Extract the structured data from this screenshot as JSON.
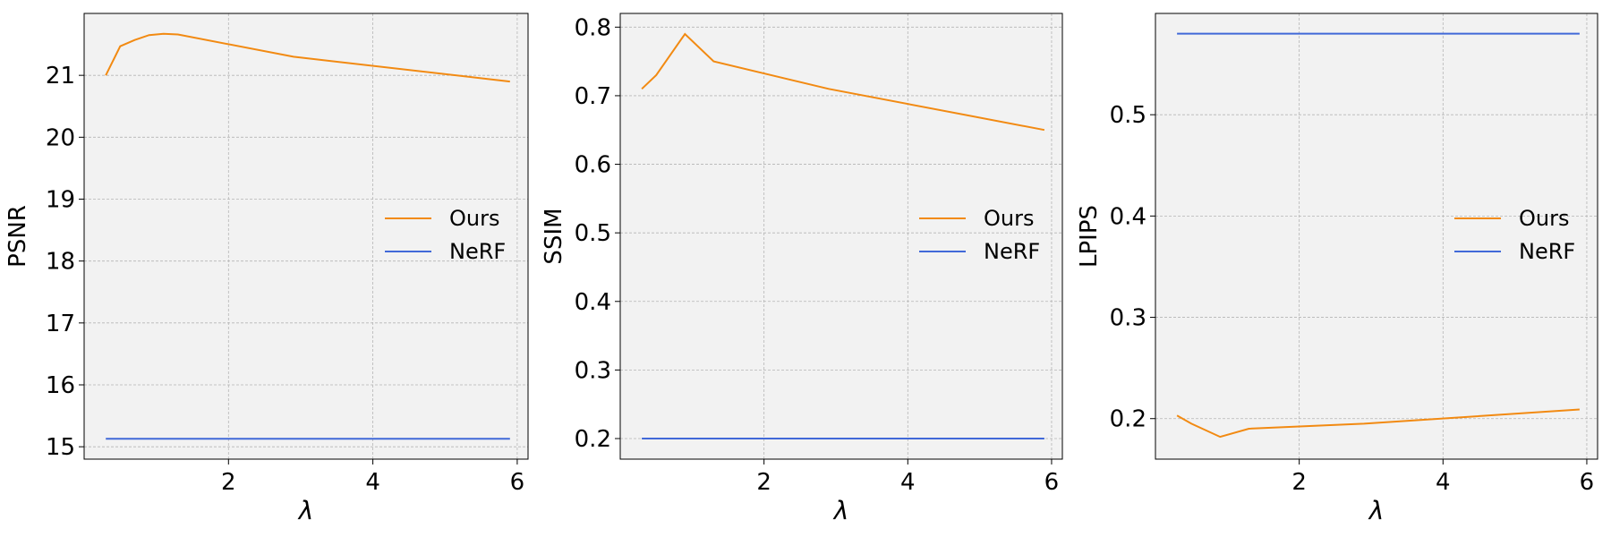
{
  "colors": {
    "ours": "#f28a12",
    "nerf": "#4169d8",
    "plot_bg": "#f2f2f2",
    "grid": "#b5b5b5"
  },
  "chart_data": [
    {
      "type": "line",
      "title": "",
      "xlabel": "λ",
      "ylabel": "PSNR",
      "xlim": [
        0,
        6.15
      ],
      "ylim": [
        14.8,
        22.0
      ],
      "xticks": [
        2,
        4,
        6
      ],
      "yticks": [
        15,
        16,
        17,
        18,
        19,
        20,
        21
      ],
      "grid": true,
      "legend_position": "center-right",
      "series": [
        {
          "name": "Ours",
          "x": [
            0.3,
            0.5,
            0.7,
            0.9,
            1.1,
            1.3,
            2.9,
            5.9
          ],
          "values": [
            21.0,
            21.47,
            21.57,
            21.65,
            21.67,
            21.66,
            21.3,
            20.9
          ]
        },
        {
          "name": "NeRF",
          "x": [
            0.3,
            5.9
          ],
          "values": [
            15.13,
            15.13
          ]
        }
      ]
    },
    {
      "type": "line",
      "title": "",
      "xlabel": "λ",
      "ylabel": "SSIM",
      "xlim": [
        0,
        6.15
      ],
      "ylim": [
        0.17,
        0.82
      ],
      "xticks": [
        2,
        4,
        6
      ],
      "yticks": [
        0.2,
        0.3,
        0.4,
        0.5,
        0.6,
        0.7,
        0.8
      ],
      "grid": true,
      "legend_position": "center-right",
      "series": [
        {
          "name": "Ours",
          "x": [
            0.3,
            0.5,
            0.9,
            1.3,
            2.9,
            5.9
          ],
          "values": [
            0.71,
            0.73,
            0.79,
            0.75,
            0.71,
            0.65
          ]
        },
        {
          "name": "NeRF",
          "x": [
            0.3,
            5.9
          ],
          "values": [
            0.2,
            0.2
          ]
        }
      ]
    },
    {
      "type": "line",
      "title": "",
      "xlabel": "λ",
      "ylabel": "LPIPS",
      "xlim": [
        0,
        6.15
      ],
      "ylim": [
        0.16,
        0.6
      ],
      "xticks": [
        2,
        4,
        6
      ],
      "yticks": [
        0.2,
        0.3,
        0.4,
        0.5
      ],
      "grid": true,
      "legend_position": "center-right",
      "series": [
        {
          "name": "Ours",
          "x": [
            0.3,
            0.5,
            0.9,
            1.3,
            2.9,
            5.9
          ],
          "values": [
            0.203,
            0.195,
            0.182,
            0.19,
            0.195,
            0.209
          ]
        },
        {
          "name": "NeRF",
          "x": [
            0.3,
            5.9
          ],
          "values": [
            0.58,
            0.58
          ]
        }
      ]
    }
  ]
}
